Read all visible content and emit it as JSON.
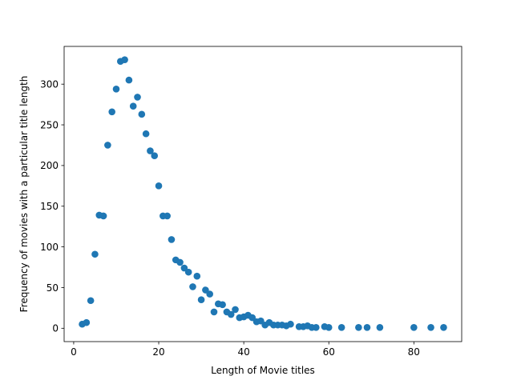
{
  "chart_data": {
    "type": "scatter",
    "title": "",
    "xlabel": "Length of Movie titles",
    "ylabel": "Frequency of movies with a particular title length",
    "xlim": [
      -2.25,
      91.25
    ],
    "ylim": [
      -16.4,
      346.4
    ],
    "xticks": [
      0,
      20,
      40,
      60,
      80
    ],
    "xtick_labels": [
      "0",
      "20",
      "40",
      "60",
      "80"
    ],
    "yticks": [
      0,
      50,
      100,
      150,
      200,
      250,
      300
    ],
    "ytick_labels": [
      "0",
      "50",
      "100",
      "150",
      "200",
      "250",
      "300"
    ],
    "grid": false,
    "marker_color": "#1f77b4",
    "series": [
      {
        "x": [
          2,
          3,
          4,
          5,
          6,
          7,
          8,
          9,
          10,
          11,
          12,
          13,
          14,
          15,
          16,
          17,
          18,
          19,
          20,
          21,
          22,
          23,
          24,
          25,
          26,
          27,
          28,
          29,
          30,
          31,
          32,
          33,
          34,
          35,
          36,
          37,
          38,
          39,
          40,
          41,
          42,
          43,
          44,
          45,
          46,
          47,
          48,
          49,
          50,
          51,
          53,
          54,
          55,
          56,
          57,
          59,
          60,
          63,
          67,
          69,
          72,
          80,
          84,
          87
        ],
        "y": [
          5,
          7,
          34,
          91,
          139,
          138,
          225,
          266,
          294,
          328,
          330,
          305,
          273,
          284,
          263,
          239,
          218,
          212,
          175,
          138,
          138,
          109,
          84,
          81,
          74,
          69,
          51,
          64,
          35,
          47,
          42,
          20,
          30,
          29,
          20,
          17,
          23,
          13,
          14,
          16,
          13,
          8,
          9,
          4,
          7,
          4,
          4,
          4,
          3,
          5,
          2,
          2,
          3,
          1,
          1,
          2,
          1,
          1,
          1,
          1,
          1,
          1,
          1,
          1
        ]
      }
    ]
  }
}
